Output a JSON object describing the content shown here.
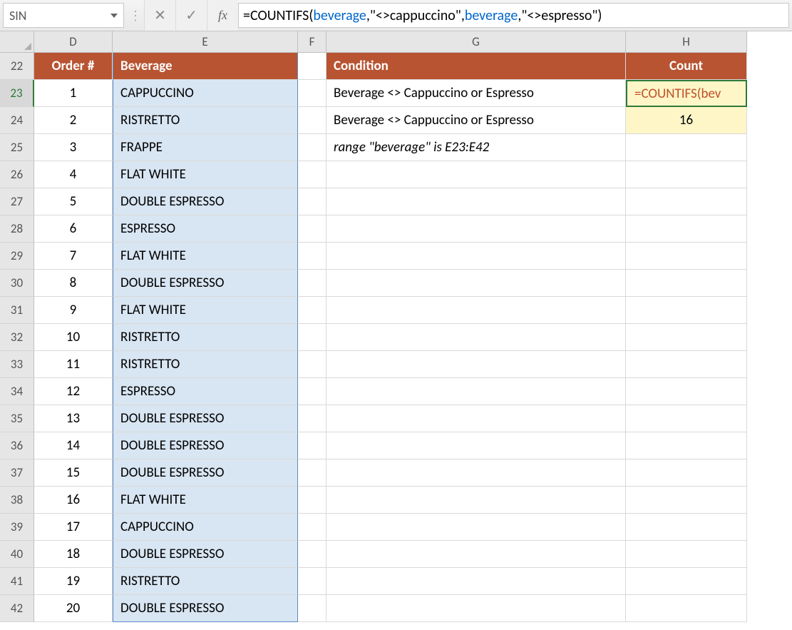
{
  "formula_bar": {
    "name_box": "SIN",
    "cancel_glyph": "✕",
    "enter_glyph": "✓",
    "fx_label": "fx",
    "formula_prefix": "=COUNTIFS(",
    "range_name": "beverage",
    "arg1": "\"<>cappuccino\"",
    "arg2": "\"<>espresso\"",
    "close": ")"
  },
  "columns": {
    "D": "D",
    "E": "E",
    "F": "F",
    "G": "G",
    "H": "H"
  },
  "colors": {
    "header_fill": "#b85432",
    "header_text": "#ffffff",
    "range_fill": "#d8e5f2",
    "range_border": "#5a8ac6",
    "highlight_fill": "#fff6c8",
    "active_border": "#2f7a39",
    "formula_text": "#c05028",
    "range_ref_text": "#0066cc",
    "grid_line": "#d9d9d9",
    "chrome_bg": "#e6e6e6"
  },
  "table": {
    "headers": {
      "order": "Order #",
      "beverage": "Beverage"
    },
    "rows": [
      {
        "n": 1,
        "bev": "CAPPUCCINO"
      },
      {
        "n": 2,
        "bev": "RISTRETTO"
      },
      {
        "n": 3,
        "bev": "FRAPPE"
      },
      {
        "n": 4,
        "bev": "FLAT WHITE"
      },
      {
        "n": 5,
        "bev": "DOUBLE ESPRESSO"
      },
      {
        "n": 6,
        "bev": "ESPRESSO"
      },
      {
        "n": 7,
        "bev": "FLAT WHITE"
      },
      {
        "n": 8,
        "bev": "DOUBLE ESPRESSO"
      },
      {
        "n": 9,
        "bev": "FLAT WHITE"
      },
      {
        "n": 10,
        "bev": "RISTRETTO"
      },
      {
        "n": 11,
        "bev": "RISTRETTO"
      },
      {
        "n": 12,
        "bev": "ESPRESSO"
      },
      {
        "n": 13,
        "bev": "DOUBLE ESPRESSO"
      },
      {
        "n": 14,
        "bev": "DOUBLE ESPRESSO"
      },
      {
        "n": 15,
        "bev": "DOUBLE ESPRESSO"
      },
      {
        "n": 16,
        "bev": "FLAT WHITE"
      },
      {
        "n": 17,
        "bev": "CAPPUCCINO"
      },
      {
        "n": 18,
        "bev": "DOUBLE ESPRESSO"
      },
      {
        "n": 19,
        "bev": "RISTRETTO"
      },
      {
        "n": 20,
        "bev": "DOUBLE ESPRESSO"
      }
    ]
  },
  "side": {
    "headers": {
      "condition": "Condition",
      "count": "Count"
    },
    "row1": {
      "condition": "Beverage <> Cappuccino or Espresso",
      "count_display": "=COUNTIFS(bev"
    },
    "row2": {
      "condition": "Beverage <> Cappuccino or Espresso",
      "count_display": "16"
    },
    "note": "range \"beverage\" is E23:E42"
  },
  "row_numbers": [
    22,
    23,
    24,
    25,
    26,
    27,
    28,
    29,
    30,
    31,
    32,
    33,
    34,
    35,
    36,
    37,
    38,
    39,
    40,
    41,
    42
  ],
  "active_row": 23
}
